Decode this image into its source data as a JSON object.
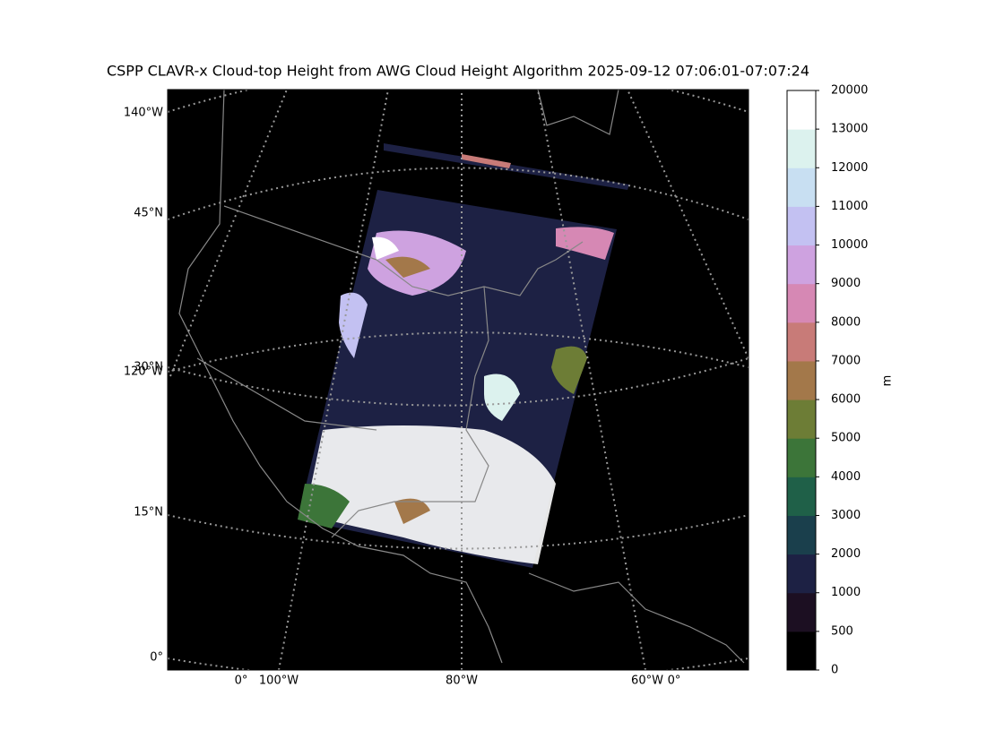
{
  "title": "CSPP CLAVR-x Cloud-top Height from AWG Cloud Height Algorithm 2025-09-12 07:06:01-07:07:24",
  "map": {
    "left_labels": [
      "140°W",
      "45°N",
      "30°N",
      "120°W",
      "15°N",
      "0°"
    ],
    "bottom_labels": [
      "0°",
      "100°W",
      "80°W",
      "60°W",
      "0°"
    ]
  },
  "colorbar": {
    "label": "m",
    "ticks": [
      0,
      500,
      1000,
      2000,
      3000,
      4000,
      5000,
      6000,
      7000,
      8000,
      9000,
      10000,
      11000,
      12000,
      13000,
      20000
    ],
    "colors": [
      "#000000",
      "#1c0f22",
      "#1d2144",
      "#1a3f4c",
      "#1f6048",
      "#3c7539",
      "#6d7d36",
      "#a3784a",
      "#c87b78",
      "#d688b4",
      "#cea2e0",
      "#c3c1f2",
      "#c8dff2",
      "#dcf2ee",
      "#ffffff"
    ]
  }
}
